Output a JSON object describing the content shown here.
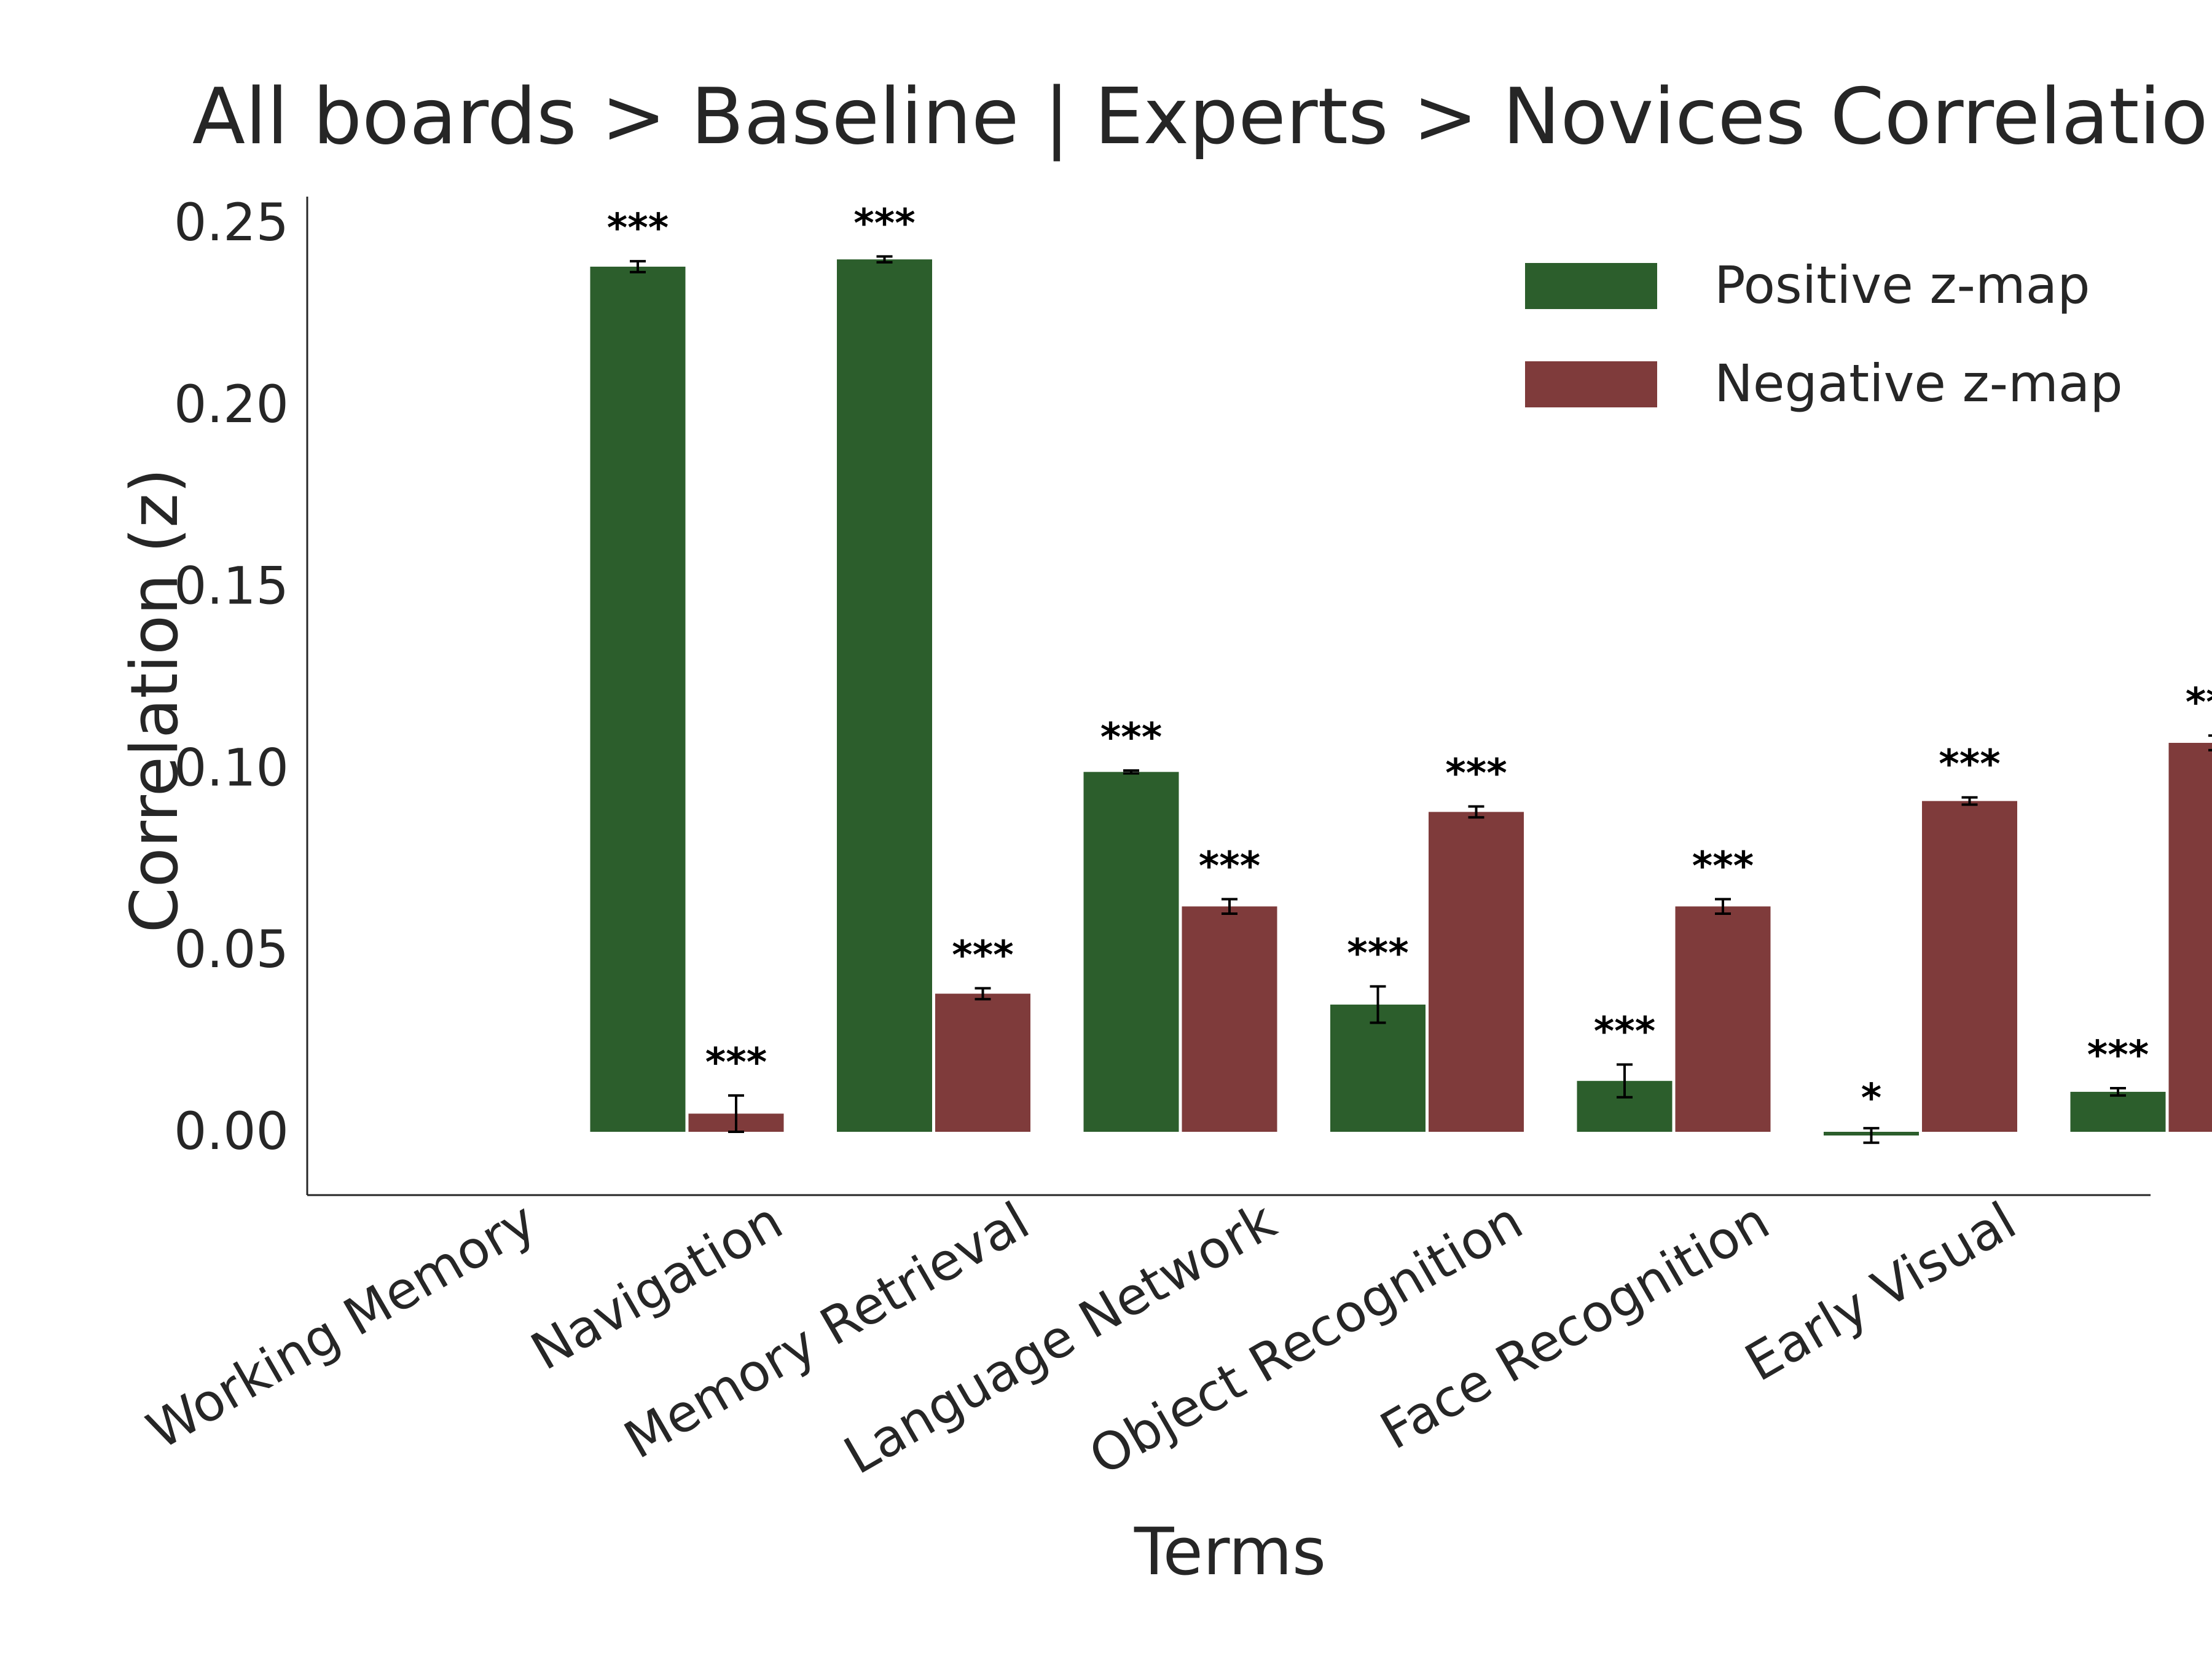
{
  "chart_data": {
    "type": "bar",
    "title": "All boards > Baseline | Experts > Novices Correlations",
    "xlabel": "Terms",
    "ylabel": "Correlation (z)",
    "ylim": [
      -0.017,
      0.255
    ],
    "yticks": [
      "0.00",
      "0.05",
      "0.10",
      "0.15",
      "0.20",
      "0.25"
    ],
    "grid": false,
    "legend_position": "top-right",
    "categories": [
      "Working Memory",
      "Navigation",
      "Memory Retrieval",
      "Language Network",
      "Object Recognition",
      "Face Recognition",
      "Early Visual"
    ],
    "series": [
      {
        "name": "Positive z-map",
        "color": "#2c5e2c",
        "values": [
          0.238,
          0.24,
          0.099,
          0.035,
          0.014,
          -0.001,
          0.011
        ],
        "errors": [
          0.0015,
          0.0008,
          0.0004,
          0.005,
          0.0045,
          0.002,
          0.001
        ],
        "significance": [
          "***",
          "***",
          "***",
          "***",
          "***",
          "*",
          "***"
        ]
      },
      {
        "name": "Negative z-map",
        "color": "#7f3b3b",
        "values": [
          0.005,
          0.038,
          0.062,
          0.088,
          0.062,
          0.091,
          0.107
        ],
        "errors": [
          0.005,
          0.0015,
          0.002,
          0.0015,
          0.002,
          0.001,
          0.002
        ],
        "significance": [
          "***",
          "***",
          "***",
          "***",
          "***",
          "***",
          "***"
        ]
      }
    ]
  }
}
